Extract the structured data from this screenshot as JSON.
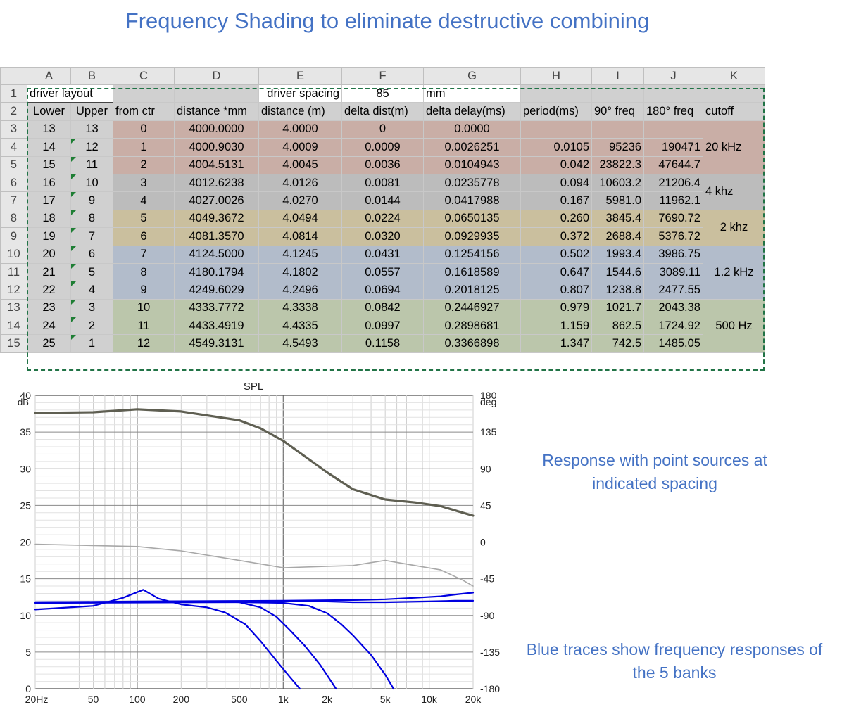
{
  "page_title": "Frequency Shading to eliminate destructive combining",
  "spreadsheet": {
    "columns": [
      "A",
      "B",
      "C",
      "D",
      "E",
      "F",
      "G",
      "H",
      "I",
      "J",
      "K"
    ],
    "row1": {
      "num": "1",
      "a": "driver layout",
      "e": "driver spacing",
      "f": "85",
      "g": "mm"
    },
    "headers": [
      "Lower",
      "Upper",
      "from ctr",
      "distance *mm",
      "distance (m)",
      "delta dist(m)",
      "delta delay(ms)",
      "period(ms)",
      "90° freq",
      "180° freq",
      "cutoff"
    ],
    "rows": [
      {
        "num": "3",
        "c": [
          "13",
          "13",
          "0",
          "4000.0000",
          "4.0000",
          "0",
          "0.0000",
          "",
          "",
          ""
        ]
      },
      {
        "num": "4",
        "c": [
          "14",
          "12",
          "1",
          "4000.9030",
          "4.0009",
          "0.0009",
          "0.0026251",
          "0.0105",
          "95236",
          "190471"
        ]
      },
      {
        "num": "5",
        "c": [
          "15",
          "11",
          "2",
          "4004.5131",
          "4.0045",
          "0.0036",
          "0.0104943",
          "0.042",
          "23822.3",
          "47644.7"
        ]
      },
      {
        "num": "6",
        "c": [
          "16",
          "10",
          "3",
          "4012.6238",
          "4.0126",
          "0.0081",
          "0.0235778",
          "0.094",
          "10603.2",
          "21206.4"
        ]
      },
      {
        "num": "7",
        "c": [
          "17",
          "9",
          "4",
          "4027.0026",
          "4.0270",
          "0.0144",
          "0.0417988",
          "0.167",
          "5981.0",
          "11962.1"
        ]
      },
      {
        "num": "8",
        "c": [
          "18",
          "8",
          "5",
          "4049.3672",
          "4.0494",
          "0.0224",
          "0.0650135",
          "0.260",
          "3845.4",
          "7690.72"
        ]
      },
      {
        "num": "9",
        "c": [
          "19",
          "7",
          "6",
          "4081.3570",
          "4.0814",
          "0.0320",
          "0.0929935",
          "0.372",
          "2688.4",
          "5376.72"
        ]
      },
      {
        "num": "10",
        "c": [
          "20",
          "6",
          "7",
          "4124.5000",
          "4.1245",
          "0.0431",
          "0.1254156",
          "0.502",
          "1993.4",
          "3986.75"
        ]
      },
      {
        "num": "11",
        "c": [
          "21",
          "5",
          "8",
          "4180.1794",
          "4.1802",
          "0.0557",
          "0.1618589",
          "0.647",
          "1544.6",
          "3089.11"
        ]
      },
      {
        "num": "12",
        "c": [
          "22",
          "4",
          "9",
          "4249.6029",
          "4.2496",
          "0.0694",
          "0.2018125",
          "0.807",
          "1238.8",
          "2477.55"
        ]
      },
      {
        "num": "13",
        "c": [
          "23",
          "3",
          "10",
          "4333.7772",
          "4.3338",
          "0.0842",
          "0.2446927",
          "0.979",
          "1021.7",
          "2043.38"
        ]
      },
      {
        "num": "14",
        "c": [
          "24",
          "2",
          "11",
          "4433.4919",
          "4.4335",
          "0.0997",
          "0.2898681",
          "1.159",
          "862.5",
          "1724.92"
        ]
      },
      {
        "num": "15",
        "c": [
          "25",
          "1",
          "12",
          "4549.3131",
          "4.5493",
          "0.1158",
          "0.3366898",
          "1.347",
          "742.5",
          "1485.05"
        ]
      }
    ],
    "cutoffs": [
      "20 kHz",
      "4 khz",
      "2 khz",
      "1.2 kHz",
      "500 Hz"
    ],
    "bank_colors": [
      "#c9aea6",
      "#bcbcbc",
      "#cabf9e",
      "#b2bccb",
      "#bbc6ab"
    ]
  },
  "notes": {
    "response": "Response with point sources at indicated spacing",
    "blue": "Blue traces show frequency responses of the 5 banks"
  },
  "chart_data": {
    "type": "line",
    "title": "SPL",
    "xscale": "log",
    "xlim": [
      20,
      20000
    ],
    "x_ticks": [
      20,
      50,
      100,
      200,
      500,
      1000,
      2000,
      5000,
      10000,
      20000
    ],
    "x_tick_labels": [
      "20Hz",
      "50",
      "100",
      "200",
      "500",
      "1k",
      "2k",
      "5k",
      "10k",
      "20k"
    ],
    "ylim": [
      0,
      40
    ],
    "y_ticks": [
      0,
      5,
      10,
      15,
      20,
      25,
      30,
      35,
      40
    ],
    "y_tick_labels": [
      "0",
      "5",
      "10",
      "15",
      "20",
      "25",
      "30",
      "35",
      "40"
    ],
    "ylabel": "dB",
    "y2lim": [
      -180,
      180
    ],
    "y2_ticks": [
      -180,
      -135,
      -90,
      -45,
      0,
      45,
      90,
      135,
      180
    ],
    "y2_tick_labels": [
      "-180",
      "-135",
      "-90",
      "-45",
      "0",
      "45",
      "90",
      "135",
      "180"
    ],
    "y2label": "deg",
    "grid": true,
    "colors": {
      "spl": "#5f5f52",
      "phase": "#a8a8a8",
      "bank": "#0000e0"
    },
    "series": [
      {
        "role": "spl",
        "axis": "left",
        "width": 3.2,
        "points": [
          [
            20,
            37.6
          ],
          [
            50,
            37.7
          ],
          [
            100,
            38.1
          ],
          [
            200,
            37.8
          ],
          [
            500,
            36.6
          ],
          [
            700,
            35.5
          ],
          [
            1000,
            33.8
          ],
          [
            2000,
            29.5
          ],
          [
            3000,
            27.2
          ],
          [
            5000,
            25.8
          ],
          [
            8000,
            25.4
          ],
          [
            12000,
            24.9
          ],
          [
            17000,
            24.0
          ],
          [
            20000,
            23.6
          ]
        ]
      },
      {
        "role": "phase",
        "axis": "left",
        "width": 1.6,
        "points": [
          [
            20,
            19.7
          ],
          [
            100,
            19.4
          ],
          [
            200,
            18.8
          ],
          [
            500,
            17.5
          ],
          [
            1000,
            16.5
          ],
          [
            2000,
            16.7
          ],
          [
            3000,
            16.8
          ],
          [
            4000,
            17.2
          ],
          [
            5000,
            17.5
          ],
          [
            7000,
            17.0
          ],
          [
            12000,
            16.2
          ],
          [
            17000,
            14.8
          ],
          [
            20000,
            14.0
          ]
        ]
      },
      {
        "role": "bank",
        "axis": "left",
        "width": 2.2,
        "points": [
          [
            20,
            11.8
          ],
          [
            200,
            11.9
          ],
          [
            500,
            11.9
          ],
          [
            1000,
            11.9
          ],
          [
            2000,
            11.9
          ],
          [
            3000,
            11.8
          ],
          [
            5000,
            11.8
          ],
          [
            10000,
            11.9
          ],
          [
            15000,
            12.0
          ],
          [
            20000,
            12.0
          ]
        ]
      },
      {
        "role": "bank",
        "axis": "left",
        "width": 2.2,
        "points": [
          [
            20,
            11.8
          ],
          [
            100,
            11.9
          ],
          [
            1000,
            12.0
          ],
          [
            3000,
            12.1
          ],
          [
            5000,
            12.2
          ],
          [
            8000,
            12.4
          ],
          [
            12000,
            12.6
          ],
          [
            16000,
            12.9
          ],
          [
            20000,
            13.1
          ]
        ]
      },
      {
        "role": "bank",
        "axis": "left",
        "width": 2.2,
        "points": [
          [
            20,
            11.7
          ],
          [
            500,
            11.8
          ],
          [
            1000,
            11.7
          ],
          [
            1500,
            11.3
          ],
          [
            2000,
            10.3
          ],
          [
            2500,
            8.8
          ],
          [
            3000,
            7.3
          ],
          [
            4000,
            4.6
          ],
          [
            5000,
            1.9
          ],
          [
            5700,
            0
          ]
        ]
      },
      {
        "role": "bank",
        "axis": "left",
        "width": 2.2,
        "points": [
          [
            20,
            11.8
          ],
          [
            300,
            11.9
          ],
          [
            500,
            11.8
          ],
          [
            700,
            11.1
          ],
          [
            900,
            9.8
          ],
          [
            1100,
            8.1
          ],
          [
            1400,
            5.9
          ],
          [
            1800,
            3.2
          ],
          [
            2300,
            0
          ]
        ]
      },
      {
        "role": "bank",
        "axis": "left",
        "width": 2.2,
        "points": [
          [
            20,
            10.8
          ],
          [
            50,
            11.3
          ],
          [
            80,
            12.4
          ],
          [
            110,
            13.5
          ],
          [
            140,
            12.3
          ],
          [
            200,
            11.5
          ],
          [
            300,
            11.1
          ],
          [
            400,
            10.4
          ],
          [
            550,
            8.8
          ],
          [
            700,
            6.5
          ],
          [
            900,
            3.8
          ],
          [
            1100,
            1.7
          ],
          [
            1300,
            0
          ]
        ]
      }
    ]
  }
}
